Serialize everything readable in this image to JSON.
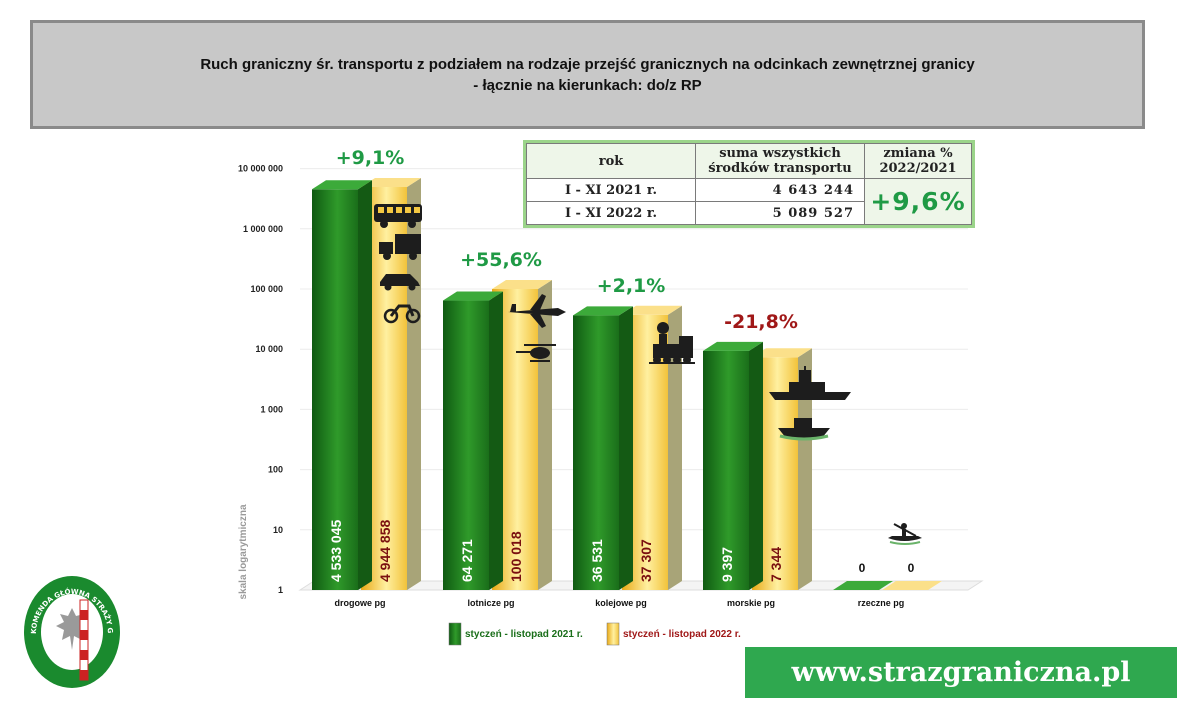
{
  "title": {
    "line1": "Ruch graniczny śr. transportu z podziałem na rodzaje przejść granicznych na odcinkach zewnętrznej granicy",
    "line2": "- łącznie na kierunkach: do/z RP"
  },
  "chart_data": {
    "type": "bar",
    "scale": "log",
    "ylabel": "skala logarytmiczna",
    "yticks": [
      1,
      10,
      100,
      1000,
      10000,
      100000,
      1000000,
      10000000
    ],
    "ytick_labels": [
      "1",
      "10",
      "100",
      "1 000",
      "10 000",
      "100 000",
      "1 000 000",
      "10 000 000"
    ],
    "categories": [
      "drogowe pg",
      "lotnicze pg",
      "kolejowe pg",
      "morskie pg",
      "rzeczne pg"
    ],
    "series": [
      {
        "name": "styczeń - listopad 2021 r.",
        "values": [
          4533045,
          64271,
          36531,
          9397,
          0
        ],
        "labels": [
          "4 533 045",
          "64 271",
          "36 531",
          "9 397",
          "0"
        ],
        "color": "#1c7a1c"
      },
      {
        "name": "styczeń - listopad 2022 r.",
        "values": [
          4944858,
          100018,
          37307,
          7344,
          0
        ],
        "labels": [
          "4 944 858",
          "100 018",
          "37 307",
          "7 344",
          "0"
        ],
        "color": "#f5c842"
      }
    ],
    "changes": [
      "+9,1%",
      "+55,6%",
      "+2,1%",
      "-21,8%",
      ""
    ],
    "change_colors": [
      "#1f9a45",
      "#1f9a45",
      "#1f9a45",
      "#a01818",
      "#1f9a45"
    ],
    "icons": [
      [
        "bus-icon",
        "truck-icon",
        "car-icon",
        "motorcycle-icon"
      ],
      [
        "airplane-icon",
        "helicopter-icon"
      ],
      [
        "train-icon"
      ],
      [
        "warship-icon",
        "motorboat-icon"
      ],
      [
        "kayak-icon"
      ]
    ],
    "legend_position": "bottom"
  },
  "summary": {
    "headers": [
      "rok",
      "suma wszystkich środków transportu",
      "zmiana % 2022/2021"
    ],
    "rows": [
      {
        "period": "I - XI 2021 r.",
        "value": "4 643 244"
      },
      {
        "period": "I - XI 2022 r.",
        "value": "5 089 527"
      }
    ],
    "change": "+9,6%"
  },
  "footer": {
    "url": "www.strazgraniczna.pl"
  },
  "logo": {
    "text": "KOMENDA GŁÓWNA STRAŻY GRANICZNEJ"
  }
}
